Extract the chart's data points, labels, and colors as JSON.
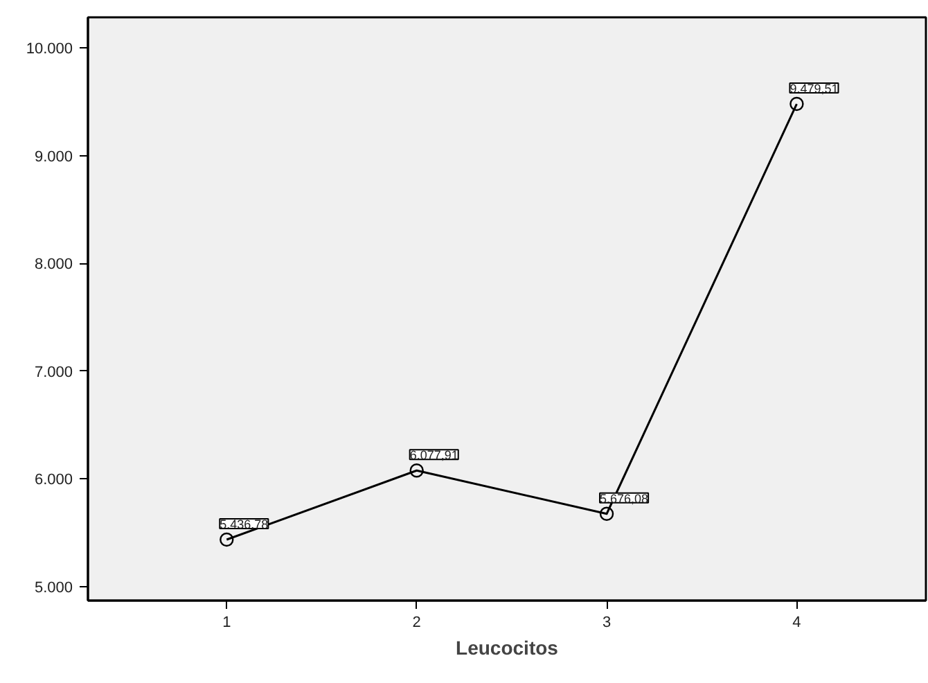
{
  "chart_data": {
    "type": "line",
    "xlabel": "Leucocitos",
    "x": [
      1,
      2,
      3,
      4
    ],
    "values": [
      5436.78,
      6077.91,
      5676.08,
      9479.51
    ],
    "value_labels": [
      "5.436,78",
      "6.077,91",
      "5.676,08",
      "9.479,51"
    ],
    "color": "#000000",
    "marker": "circle",
    "line_style": "solid",
    "grid": false,
    "xlim": [
      0.27,
      4.68
    ],
    "ylim": [
      4871,
      10283
    ],
    "xticks": [
      1,
      2,
      3,
      4
    ],
    "yticks": [
      {
        "value": 5000,
        "label": "5.000"
      },
      {
        "value": 6000,
        "label": "6.000"
      },
      {
        "value": 7000,
        "label": "7.000"
      },
      {
        "value": 8000,
        "label": "8.000"
      },
      {
        "value": 9000,
        "label": "9.000"
      },
      {
        "value": 10000,
        "label": "10.000"
      }
    ]
  }
}
